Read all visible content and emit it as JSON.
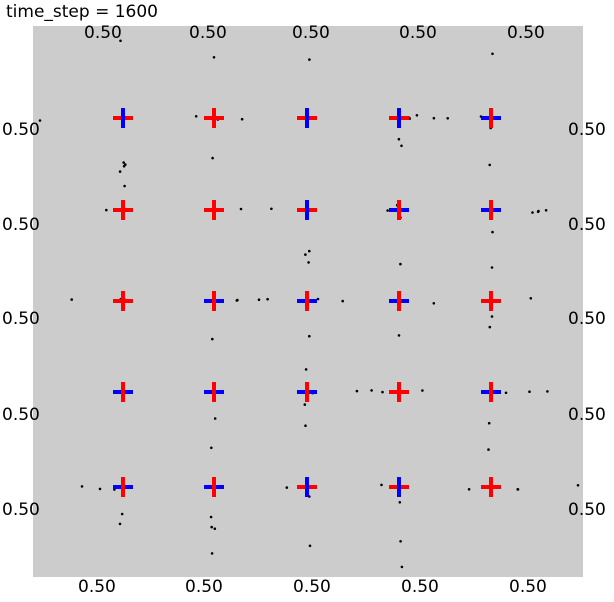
{
  "title": "time_step = 1600",
  "grid": {
    "rows": 5,
    "cols": 5,
    "cell_labels_top": [
      "0.50",
      "0.50",
      "0.50",
      "0.50",
      "0.50"
    ],
    "cell_labels_bottom": [
      "0.50",
      "0.50",
      "0.50",
      "0.50",
      "0.50"
    ],
    "cell_labels_left": [
      "0.50",
      "0.50",
      "0.50",
      "0.50",
      "0.50"
    ],
    "cell_labels_right": [
      "0.50",
      "0.50",
      "0.50",
      "0.50",
      "0.50"
    ]
  },
  "colors": {
    "background": "#cccccc",
    "red_marker": "#ff0000",
    "blue_marker": "#0000ff",
    "dots": "#000000"
  },
  "markers": [
    [
      "red-blue-bottom",
      "red",
      "blue-center",
      "red-blue-right",
      "blue-red-right"
    ],
    [
      "red-dark",
      "red",
      "blue-center",
      "blue-red-left",
      "blue-red-bottom"
    ],
    [
      "red",
      "blue-red-top",
      "blue-red-left",
      "blue-red-center",
      "red"
    ],
    [
      "blue-red-top",
      "blue-red-top",
      "blue-red-top",
      "red",
      "blue-red-left"
    ],
    [
      "blue-red-top",
      "blue-red-right",
      "red-blue-bottom",
      "red-blue-right",
      "red"
    ]
  ]
}
